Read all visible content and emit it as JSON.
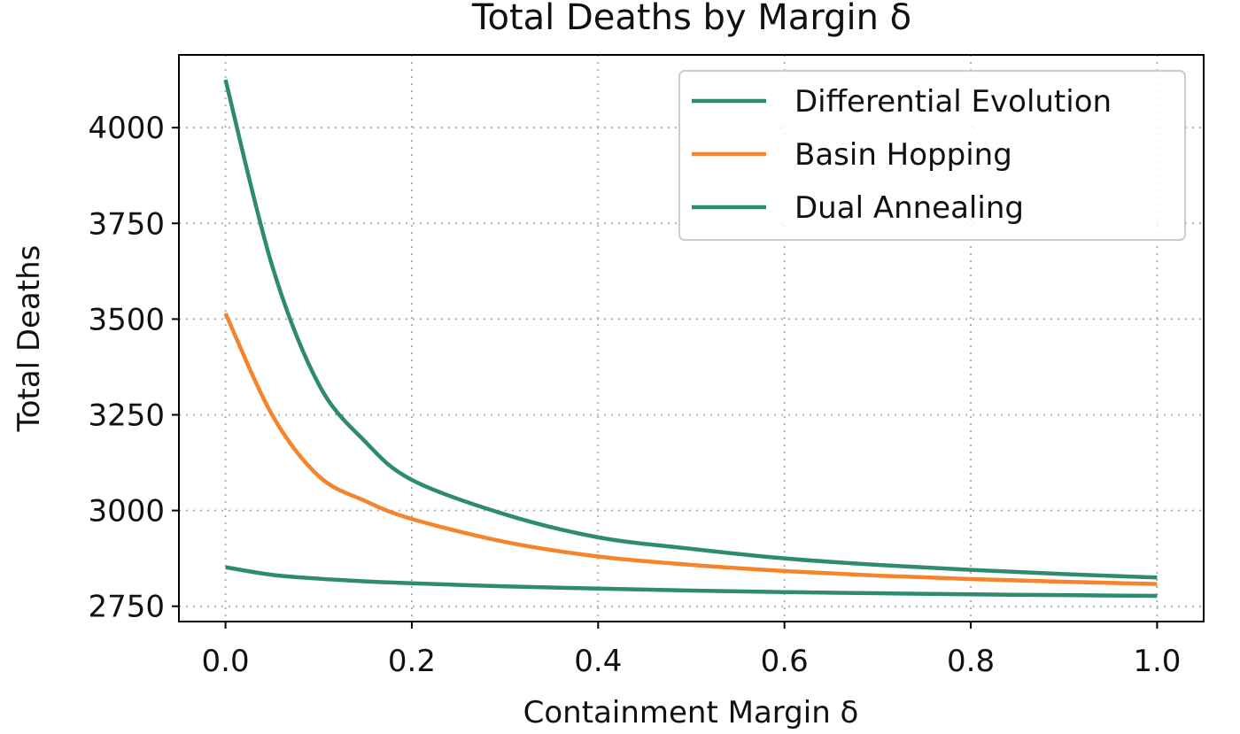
{
  "chart_data": {
    "type": "line",
    "title": "Total Deaths by Margin δ",
    "xlabel": "Containment Margin δ",
    "ylabel": "Total Deaths",
    "xlim": [
      -0.05,
      1.05
    ],
    "ylim": [
      2710,
      4190
    ],
    "xticks": [
      0.0,
      0.2,
      0.4,
      0.6,
      0.8,
      1.0
    ],
    "xtick_labels": [
      "0.0",
      "0.2",
      "0.4",
      "0.6",
      "0.8",
      "1.0"
    ],
    "yticks": [
      2750,
      3000,
      3250,
      3500,
      3750,
      4000
    ],
    "ytick_labels": [
      "2750",
      "3000",
      "3250",
      "3500",
      "3750",
      "4000"
    ],
    "grid": true,
    "legend_position": "top-right",
    "x": [
      0.0,
      0.05,
      0.1,
      0.15,
      0.2,
      0.3,
      0.4,
      0.5,
      0.6,
      0.7,
      0.8,
      0.9,
      1.0
    ],
    "series": [
      {
        "name": "Differential Evolution",
        "color": "#2e8b6e",
        "values": [
          4125,
          3640,
          3330,
          3180,
          3080,
          2990,
          2930,
          2900,
          2875,
          2858,
          2845,
          2834,
          2825
        ]
      },
      {
        "name": "Basin Hopping",
        "color": "#f5842a",
        "values": [
          3515,
          3250,
          3090,
          3025,
          2978,
          2918,
          2880,
          2858,
          2842,
          2830,
          2821,
          2814,
          2808
        ]
      },
      {
        "name": "Dual Annealing",
        "color": "#2e8b6e",
        "values": [
          2852,
          2832,
          2822,
          2815,
          2810,
          2802,
          2796,
          2791,
          2787,
          2784,
          2781,
          2779,
          2777
        ]
      }
    ]
  }
}
